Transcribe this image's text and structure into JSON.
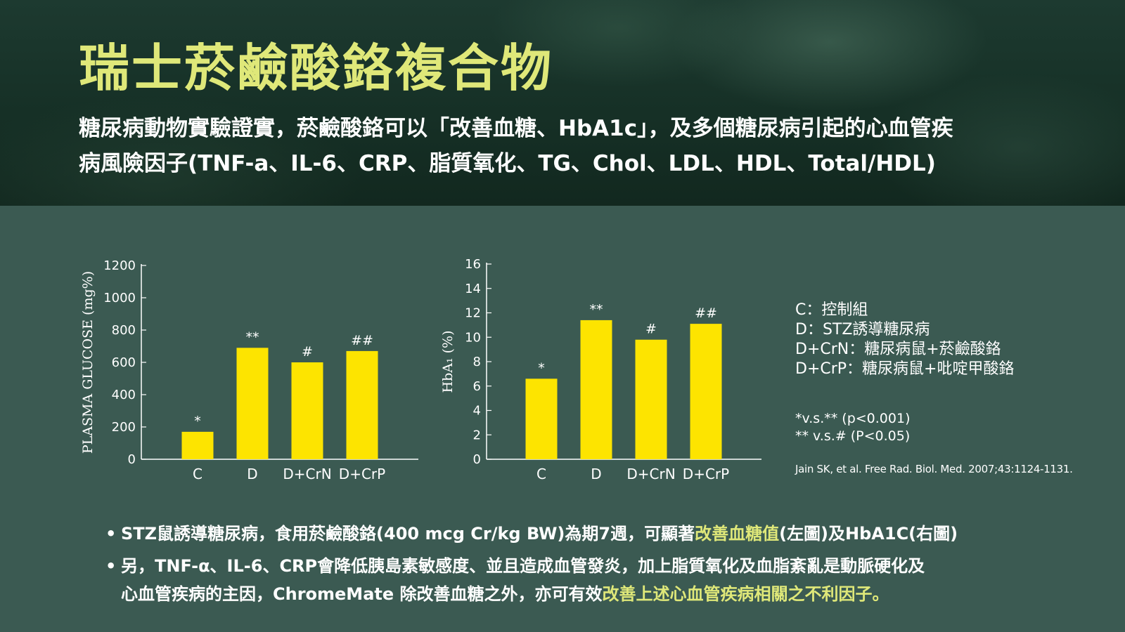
{
  "header": {
    "title": "瑞士菸鹼酸鉻複合物",
    "subtitle_line1": "糖尿病動物實驗證實，菸鹼酸鉻可以「改善血糖、HbA1c」，及多個糖尿病引起的心血管疾",
    "subtitle_line2": "病風險因子(TNF-a、IL-6、CRP、脂質氧化、TG、Chol、LDL、HDL、Total/HDL)"
  },
  "colors": {
    "accent": "#dfe879",
    "bar": "#fde400",
    "background": "#3b5a52",
    "text": "#ffffff"
  },
  "chart_data": [
    {
      "type": "bar",
      "categories": [
        "C",
        "D",
        "D+CrN",
        "D+CrP"
      ],
      "values": [
        170,
        690,
        600,
        670
      ],
      "annotations": [
        "*",
        "**",
        "#",
        "##"
      ],
      "ylabel": "PLASMA GLUCOSE (mg%)",
      "xlabel": "",
      "ylim": [
        0,
        1200
      ],
      "yticks": [
        0,
        200,
        400,
        600,
        800,
        1000,
        1200
      ],
      "ytick_labels": [
        "0",
        "200",
        "400",
        "600",
        "800",
        "1000",
        "1200"
      ],
      "grid": false
    },
    {
      "type": "bar",
      "categories": [
        "C",
        "D",
        "D+CrN",
        "D+CrP"
      ],
      "values": [
        6.6,
        11.4,
        9.8,
        11.1
      ],
      "annotations": [
        "*",
        "**",
        "#",
        "##"
      ],
      "ylabel": "HbA₁ (%)",
      "xlabel": "",
      "ylim": [
        0,
        16
      ],
      "yticks": [
        0,
        2,
        4,
        6,
        8,
        10,
        12,
        14,
        16
      ],
      "ytick_labels": [
        "0",
        "2",
        "4",
        "6",
        "8",
        "10",
        "12",
        "14",
        "16"
      ],
      "grid": false
    }
  ],
  "legend": {
    "items": [
      "C：控制組",
      "D：STZ誘導糖尿病",
      "D+CrN：糖尿病鼠+菸鹼酸鉻",
      "D+CrP：糖尿病鼠+吡啶甲酸鉻"
    ]
  },
  "notes": {
    "sig1": "*v.s.** (p<0.001)",
    "sig2": "** v.s.# (P<0.05)",
    "citation": "Jain SK, et al. Free Rad. Biol. Med. 2007;43:1124-1131."
  },
  "bullets": {
    "b1_part1": "STZ鼠誘導糖尿病，食用菸鹼酸鉻(400 mcg Cr/kg BW)為期7週，可顯著",
    "b1_highlight": "改善血糖值",
    "b1_part2": "(左圖)及HbA1C(右圖)",
    "b2_line1": "另，TNF-α、IL-6、CRP會降低胰島素敏感度、並且造成血管發炎，加上脂質氧化及血脂紊亂是動脈硬化及",
    "b2_line2_part1": "心血管疾病的主因，ChromeMate 除改善血糖之外，亦可有效",
    "b2_line2_highlight": "改善上述心血管疾病相關之不利因子。"
  }
}
